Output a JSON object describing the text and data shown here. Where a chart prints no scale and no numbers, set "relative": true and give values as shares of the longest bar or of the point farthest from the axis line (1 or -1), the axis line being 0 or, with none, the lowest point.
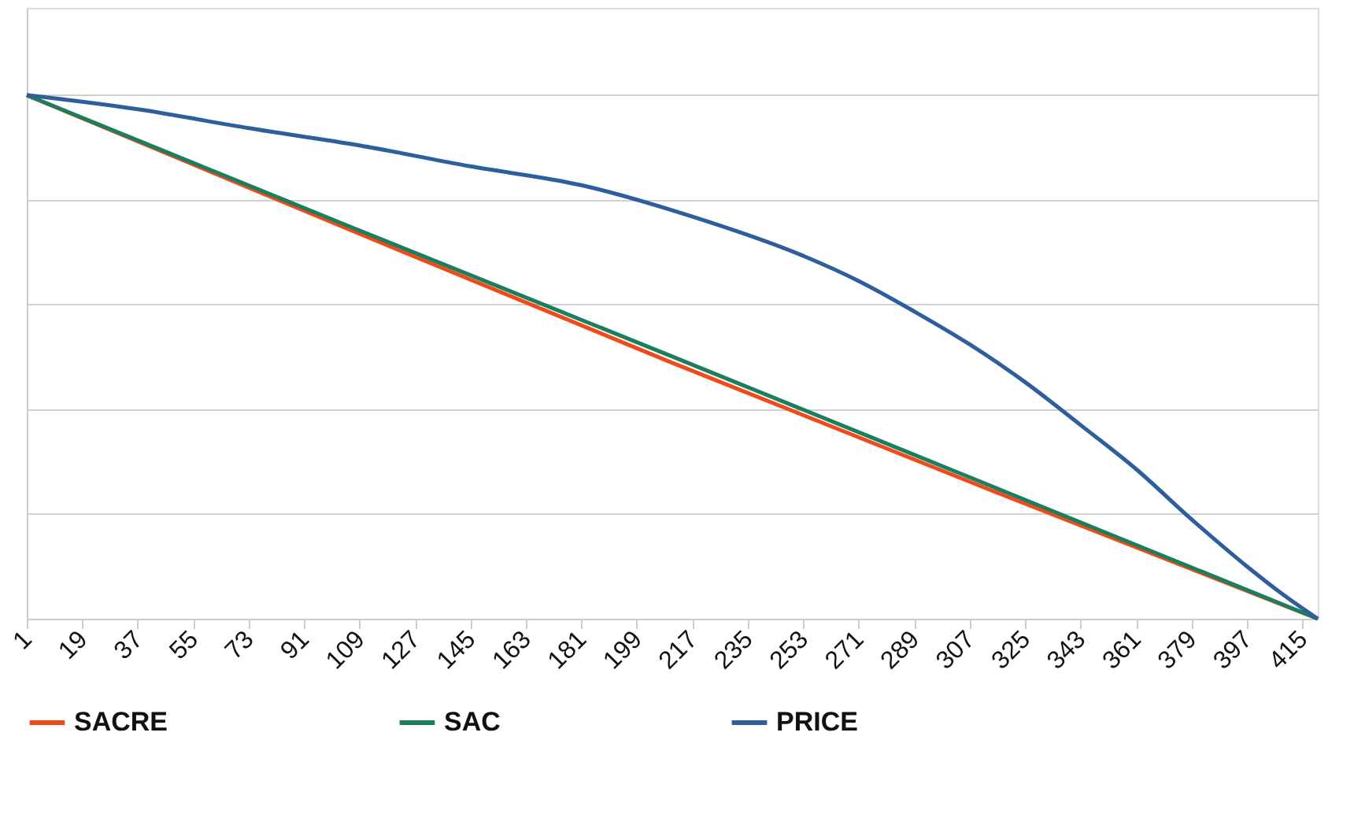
{
  "chart_data": {
    "type": "line",
    "relative": true,
    "xlim": [
      1,
      420
    ],
    "xticks": [
      1,
      19,
      37,
      55,
      73,
      91,
      109,
      127,
      145,
      163,
      181,
      199,
      217,
      235,
      253,
      271,
      289,
      307,
      325,
      343,
      361,
      379,
      397,
      415
    ],
    "grid": "y",
    "legend": "bottom",
    "marker": "none",
    "line_style": "solid",
    "series": [
      {
        "name": "SACRE",
        "color": "#f04a1a",
        "x": [
          1,
          105,
          210,
          315,
          420
        ],
        "values": [
          1.0,
          0.745,
          0.49,
          0.243,
          0.0
        ]
      },
      {
        "name": "SAC",
        "color": "#1b7f5e",
        "x": [
          1,
          105,
          210,
          315,
          420
        ],
        "values": [
          1.0,
          0.751,
          0.502,
          0.251,
          0.0
        ]
      },
      {
        "name": "PRICE",
        "color": "#2e5e9e",
        "x": [
          1,
          37,
          73,
          109,
          145,
          181,
          217,
          253,
          271,
          289,
          307,
          325,
          343,
          361,
          379,
          397,
          409,
          420
        ],
        "values": [
          1.0,
          0.973,
          0.937,
          0.904,
          0.864,
          0.828,
          0.768,
          0.693,
          0.645,
          0.587,
          0.524,
          0.452,
          0.37,
          0.286,
          0.19,
          0.1,
          0.045,
          0.0
        ]
      }
    ]
  }
}
